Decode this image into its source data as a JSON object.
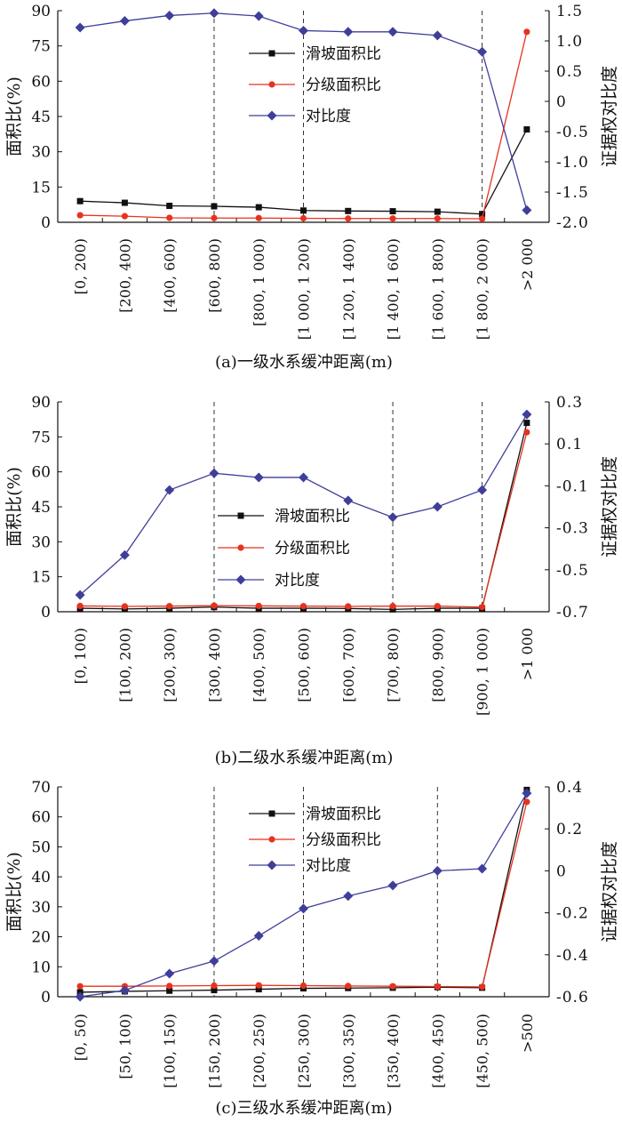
{
  "figure": {
    "panels": [
      {
        "id": "a",
        "caption": "(a)一级水系缓冲距离(m)",
        "chart_data": {
          "type": "line",
          "categories": [
            "[0, 200)",
            "[200, 400)",
            "[400, 600)",
            "[600, 800)",
            "[800, 1 000)",
            "[1 000, 1 200)",
            "[1 200, 1 400)",
            "[1 400, 1 600)",
            "[1 600, 1 800)",
            "[1 800, 2 000)",
            ">2 000"
          ],
          "ylabel": "面积比(%)",
          "y2label": "证据权对比度",
          "ylim": [
            0,
            90
          ],
          "yticks": [
            "0",
            "15",
            "30",
            "45",
            "60",
            "75",
            "90"
          ],
          "y2lim": [
            -2.0,
            1.5
          ],
          "y2ticks": [
            "-2.0",
            "-1.5",
            "-1.0",
            "-0.5",
            "0",
            "0.5",
            "1.0",
            "1.5"
          ],
          "dashed_at": [
            "[600, 800)",
            "[1 000, 1 200)",
            "[1 800, 2 000)"
          ],
          "legend": "top-right",
          "series": [
            {
              "name": "滑坡面积比",
              "axis": "left",
              "color": "#111111",
              "marker": "square",
              "values": [
                9.0,
                8.3,
                7.0,
                6.8,
                6.4,
                5.0,
                4.8,
                4.7,
                4.5,
                3.5,
                39.5
              ]
            },
            {
              "name": "分级面积比",
              "axis": "left",
              "color": "#e8321f",
              "marker": "circle",
              "values": [
                3.0,
                2.6,
                1.9,
                1.8,
                1.8,
                1.7,
                1.6,
                1.6,
                1.6,
                1.5,
                81.0
              ]
            },
            {
              "name": "对比度",
              "axis": "right",
              "color": "#3f3f9a",
              "marker": "diamond",
              "values": [
                1.22,
                1.33,
                1.42,
                1.46,
                1.41,
                1.17,
                1.15,
                1.15,
                1.09,
                0.82,
                -1.8
              ]
            }
          ]
        }
      },
      {
        "id": "b",
        "caption": "(b)二级水系缓冲距离(m)",
        "chart_data": {
          "type": "line",
          "categories": [
            "[0, 100)",
            "[100, 200)",
            "[200, 300)",
            "[300, 400)",
            "[400, 500)",
            "[500, 600)",
            "[600, 700)",
            "[700, 800)",
            "[800, 900)",
            "[900, 1 000)",
            ">1 000"
          ],
          "ylabel": "面积比(%)",
          "y2label": "证据权对比度",
          "ylim": [
            0,
            90
          ],
          "yticks": [
            "0",
            "15",
            "30",
            "45",
            "60",
            "75",
            "90"
          ],
          "y2lim": [
            -0.7,
            0.3
          ],
          "y2ticks": [
            "-0.7",
            "-0.5",
            "-0.3",
            "-0.1",
            "0.1",
            "0.3"
          ],
          "dashed_at": [
            "[300, 400)",
            "[700, 800)",
            "[900, 1 000)"
          ],
          "legend": "center",
          "series": [
            {
              "name": "滑坡面积比",
              "axis": "left",
              "color": "#111111",
              "marker": "square",
              "values": [
                1.5,
                1.2,
                1.5,
                2.0,
                1.5,
                1.5,
                1.4,
                1.0,
                1.5,
                1.5,
                81.0
              ]
            },
            {
              "name": "分级面积比",
              "axis": "left",
              "color": "#e8321f",
              "marker": "circle",
              "values": [
                2.5,
                2.3,
                2.4,
                2.6,
                2.5,
                2.4,
                2.3,
                2.4,
                2.4,
                2.0,
                77.0
              ]
            },
            {
              "name": "对比度",
              "axis": "right",
              "color": "#3f3f9a",
              "marker": "diamond",
              "values": [
                -0.62,
                -0.43,
                -0.12,
                -0.04,
                -0.06,
                -0.06,
                -0.17,
                -0.25,
                -0.2,
                -0.12,
                0.24
              ]
            }
          ]
        }
      },
      {
        "id": "c",
        "caption": "(c)三级水系缓冲距离(m)",
        "chart_data": {
          "type": "line",
          "categories": [
            "[0, 50)",
            "[50, 100)",
            "[100, 150)",
            "[150, 200)",
            "[200, 250)",
            "[250, 300)",
            "[300, 350)",
            "[350, 400)",
            "[400, 450)",
            "[450, 500)",
            ">500"
          ],
          "ylabel": "面积比(%)",
          "y2label": "证据权对比度",
          "ylim": [
            0,
            70
          ],
          "yticks": [
            "0",
            "10",
            "20",
            "30",
            "40",
            "50",
            "60",
            "70"
          ],
          "y2lim": [
            -0.6,
            0.4
          ],
          "y2ticks": [
            "-0.6",
            "-0.4",
            "-0.2",
            "0",
            "0.2",
            "0.4"
          ],
          "dashed_at": [
            "[150, 200)",
            "[250, 300)",
            "[400, 450)"
          ],
          "legend": "top-center",
          "series": [
            {
              "name": "滑坡面积比",
              "axis": "left",
              "color": "#111111",
              "marker": "square",
              "values": [
                1.5,
                1.8,
                2.0,
                2.2,
                2.5,
                2.8,
                2.9,
                3.0,
                3.2,
                3.0,
                69.0
              ]
            },
            {
              "name": "分级面积比",
              "axis": "left",
              "color": "#e8321f",
              "marker": "circle",
              "values": [
                3.5,
                3.5,
                3.6,
                3.7,
                3.8,
                3.7,
                3.6,
                3.5,
                3.4,
                3.3,
                65.0
              ]
            },
            {
              "name": "对比度",
              "axis": "right",
              "color": "#3f3f9a",
              "marker": "diamond",
              "values": [
                -0.6,
                -0.57,
                -0.49,
                -0.43,
                -0.31,
                -0.18,
                -0.12,
                -0.07,
                0.0,
                0.01,
                0.37
              ]
            }
          ]
        }
      }
    ]
  }
}
